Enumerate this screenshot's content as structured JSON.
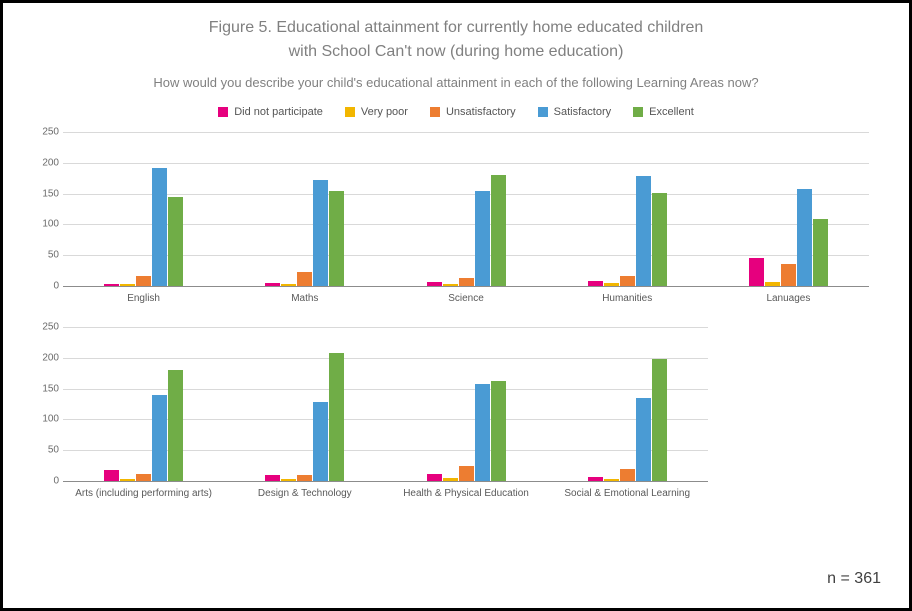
{
  "title": "Figure 5. Educational attainment for currently home educated children",
  "subtitle": "with School Can't now (during home education)",
  "question": "How would you describe your child's educational attainment in each of the following Learning Areas now?",
  "n_label": "n = 361",
  "ymax": 250,
  "ytick_step": 50,
  "grid_color": "#d9d9d9",
  "axis_color": "#8c8c8c",
  "background_color": "#ffffff",
  "series": [
    {
      "label": "Did not participate",
      "color": "#e6007e"
    },
    {
      "label": "Very poor",
      "color": "#f2b600"
    },
    {
      "label": "Unsatisfactory",
      "color": "#ed7d31"
    },
    {
      "label": "Satisfactory",
      "color": "#4a9bd4"
    },
    {
      "label": "Excellent",
      "color": "#70ad47"
    }
  ],
  "rows": [
    {
      "categories": [
        {
          "label": "English",
          "values": [
            4,
            3,
            16,
            192,
            144
          ]
        },
        {
          "label": "Maths",
          "values": [
            5,
            4,
            23,
            172,
            155
          ]
        },
        {
          "label": "Science",
          "values": [
            6,
            3,
            13,
            155,
            180
          ]
        },
        {
          "label": "Humanities",
          "values": [
            8,
            5,
            17,
            178,
            151
          ]
        },
        {
          "label": "Lanuages",
          "values": [
            45,
            7,
            35,
            158,
            108
          ]
        }
      ]
    },
    {
      "categories": [
        {
          "label": "Arts (including performing arts)",
          "values": [
            18,
            4,
            12,
            140,
            180
          ]
        },
        {
          "label": "Design & Technology",
          "values": [
            10,
            3,
            10,
            128,
            208
          ]
        },
        {
          "label": "Health & Physical Education",
          "values": [
            11,
            5,
            24,
            157,
            162
          ]
        },
        {
          "label": "Social & Emotional Learning",
          "values": [
            6,
            4,
            20,
            134,
            198
          ]
        }
      ]
    }
  ]
}
